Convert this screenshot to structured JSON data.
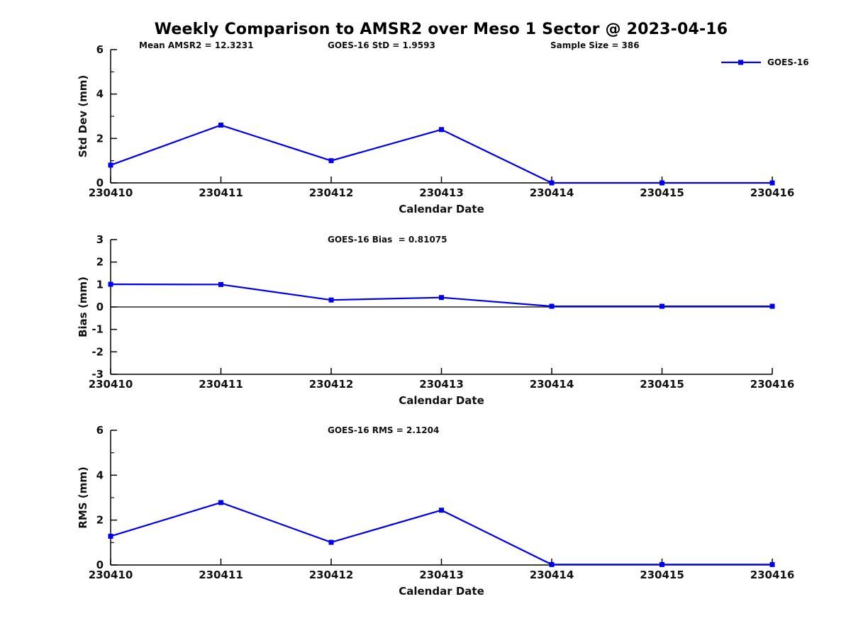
{
  "title": "Weekly Comparison to AMSR2 over Meso 1 Sector @ 2023-04-16",
  "legend": {
    "label": "GOES-16"
  },
  "series_color": "#0000EE",
  "chart_data": [
    {
      "type": "line",
      "title": "",
      "ylabel": "Std Dev (mm)",
      "xlabel": "Calendar Date",
      "ylim": [
        0,
        6
      ],
      "yticks": [
        0,
        2,
        4,
        6
      ],
      "yticks_minor": [
        1,
        3,
        5
      ],
      "grid": false,
      "legend_position": "top-right",
      "categories": [
        "230410",
        "230411",
        "230412",
        "230413",
        "230414",
        "230415",
        "230416"
      ],
      "series": [
        {
          "name": "GOES-16",
          "values": [
            0.8,
            2.6,
            1.0,
            2.4,
            0.0,
            0.0,
            0.0
          ]
        }
      ],
      "annotations": [
        {
          "text": "Mean AMSR2 = 12.3231"
        },
        {
          "text": "GOES-16 StD = 1.9593"
        },
        {
          "text": "Sample Size = 386"
        }
      ]
    },
    {
      "type": "line",
      "title": "",
      "ylabel": "Bias (mm)",
      "xlabel": "Calendar Date",
      "ylim": [
        -3,
        3
      ],
      "yticks": [
        -3,
        -2,
        -1,
        0,
        1,
        2,
        3
      ],
      "yticks_minor": [],
      "zero_line": true,
      "grid": false,
      "categories": [
        "230410",
        "230411",
        "230412",
        "230413",
        "230414",
        "230415",
        "230416"
      ],
      "series": [
        {
          "name": "GOES-16",
          "values": [
            1.01,
            1.0,
            0.31,
            0.42,
            0.03,
            0.03,
            0.03
          ]
        }
      ],
      "annotations": [
        {
          "text": "GOES-16 Bias  = 0.81075"
        }
      ]
    },
    {
      "type": "line",
      "title": "",
      "ylabel": "RMS (mm)",
      "xlabel": "Calendar Date",
      "ylim": [
        0,
        6
      ],
      "yticks": [
        0,
        2,
        4,
        6
      ],
      "yticks_minor": [
        1,
        3,
        5
      ],
      "grid": false,
      "categories": [
        "230410",
        "230411",
        "230412",
        "230413",
        "230414",
        "230415",
        "230416"
      ],
      "series": [
        {
          "name": "GOES-16",
          "values": [
            1.28,
            2.78,
            1.01,
            2.44,
            0.02,
            0.02,
            0.02
          ]
        }
      ],
      "annotations": [
        {
          "text": "GOES-16 RMS = 2.1204"
        }
      ]
    }
  ]
}
